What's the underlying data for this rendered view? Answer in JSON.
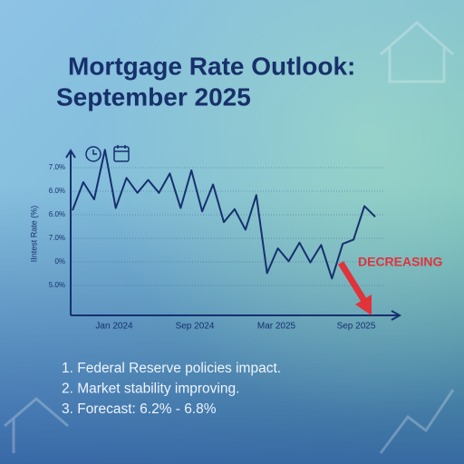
{
  "header": {
    "title_line1": "Mortgage Rate Outlook:",
    "title_line2": "September 2025"
  },
  "chart": {
    "y_axis_label": "IIntest Rate (%)",
    "y_labels": [
      "7.0%",
      "6.0%",
      "6.0%",
      "7.0%",
      "0%",
      "5.0%"
    ],
    "x_labels": [
      "Jan 2024",
      "Sep 2024",
      "Mar 2025",
      "Sep 2025"
    ],
    "ylim": [
      0,
      6.5
    ],
    "values": [
      3.73,
      4.73,
      4.12,
      5.88,
      3.81,
      4.88,
      4.35,
      4.81,
      4.35,
      5.04,
      3.81,
      5.15,
      3.69,
      4.65,
      3.31,
      3.77,
      3.04,
      4.27,
      1.5,
      2.38,
      1.92,
      2.58,
      1.88,
      2.5,
      1.31,
      2.54,
      2.69,
      3.88,
      3.5
    ],
    "color": "#16306e",
    "annotation": "DECREASING"
  },
  "list": [
    "1. Federal Reserve policies impact.",
    "2. Market stability improving.",
    "3. Forecast: 6.2% - 6.8%"
  ]
}
